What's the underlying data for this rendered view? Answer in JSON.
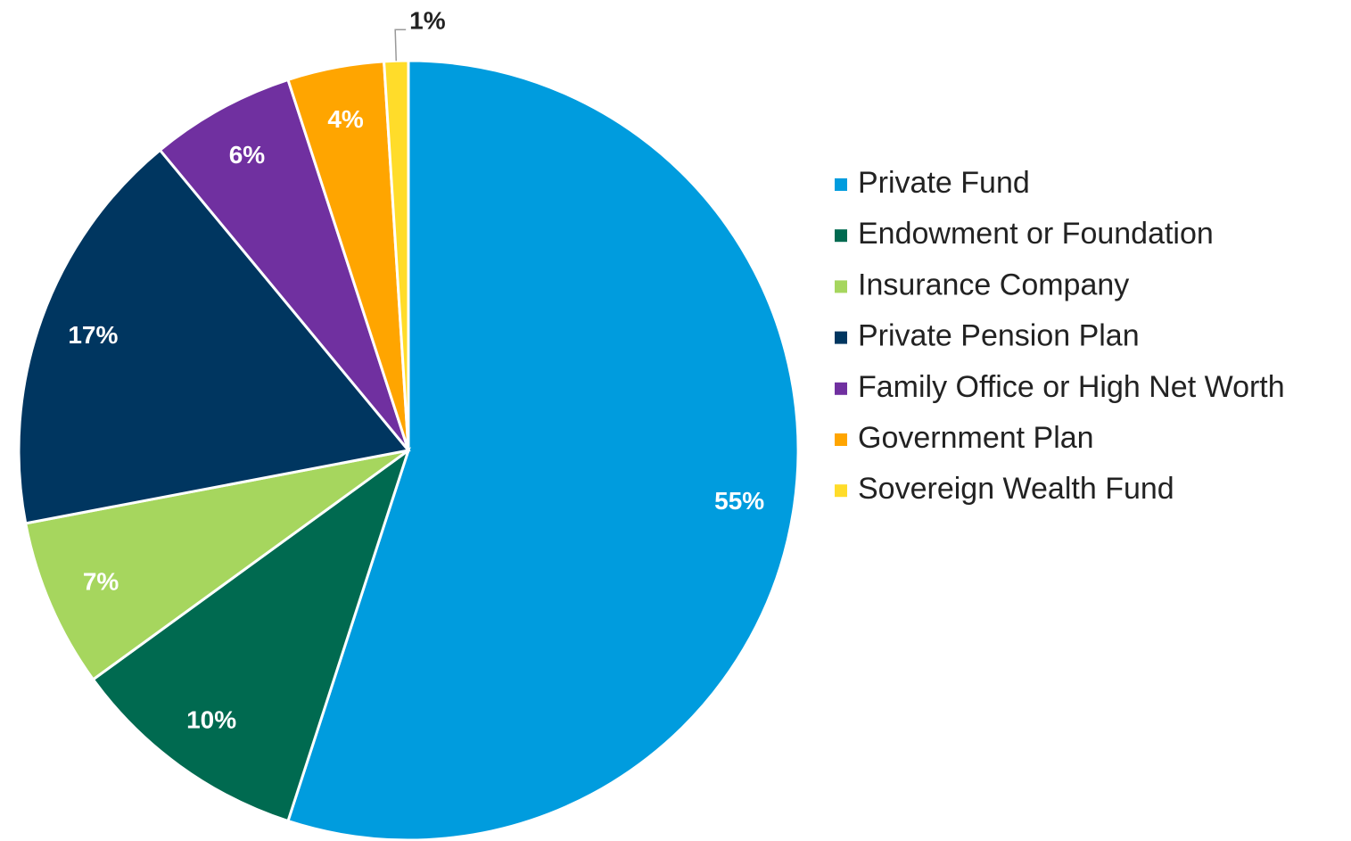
{
  "chart_data": {
    "type": "pie",
    "categories": [
      "Private Fund",
      "Endowment or Foundation",
      "Insurance Company",
      "Private Pension Plan",
      "Family Office or High Net Worth",
      "Government Plan",
      "Sovereign Wealth Fund"
    ],
    "values": [
      55,
      10,
      7,
      17,
      6,
      4,
      1
    ],
    "value_labels": [
      "55%",
      "10%",
      "7%",
      "17%",
      "6%",
      "4%",
      "1%"
    ],
    "colors": [
      "#009cde",
      "#006a50",
      "#a6d65e",
      "#003660",
      "#7030a0",
      "#ffa500",
      "#ffdc2a"
    ],
    "legend": "right"
  }
}
